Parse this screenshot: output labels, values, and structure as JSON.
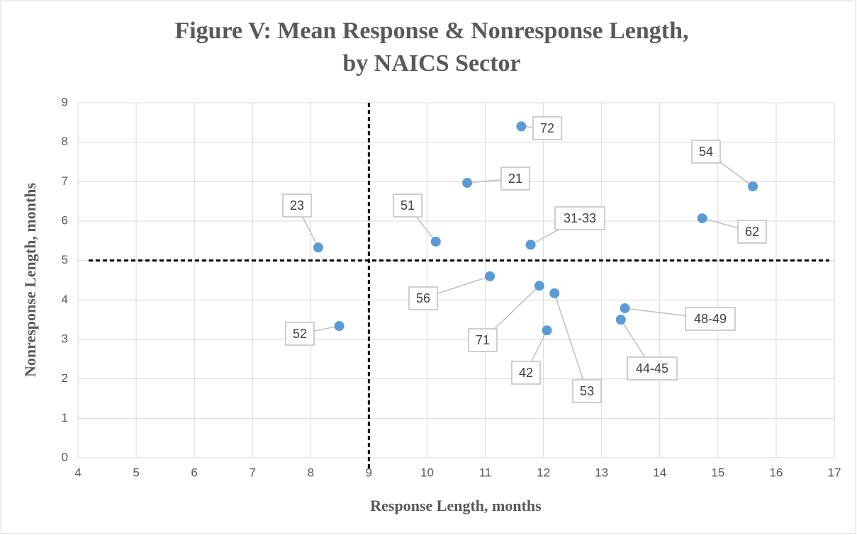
{
  "chart_data": {
    "type": "scatter",
    "title": [
      "Figure V:  Mean Response & Nonresponse Length,",
      "by NAICS Sector"
    ],
    "x_label": "Response Length, months",
    "y_label": "Nonresponse Length, months",
    "labels": [
      "72",
      "54",
      "21",
      "62",
      "23",
      "51",
      "31-33",
      "56",
      "71",
      "53",
      "48-49",
      "44-45",
      "42",
      "52"
    ],
    "x": [
      11.62,
      15.6,
      10.69,
      14.73,
      8.13,
      10.15,
      11.78,
      11.08,
      11.93,
      12.19,
      13.4,
      13.33,
      12.06,
      8.49
    ],
    "values": [
      8.4,
      6.88,
      6.97,
      6.07,
      5.33,
      5.48,
      5.4,
      4.6,
      4.36,
      4.17,
      3.79,
      3.5,
      3.23,
      3.34
    ],
    "color": "#5b9bd5",
    "xlim": [
      4,
      17
    ],
    "xticks": [
      4,
      5,
      6,
      7,
      8,
      9,
      10,
      11,
      12,
      13,
      14,
      15,
      16,
      17
    ],
    "ylim": [
      0,
      9
    ],
    "yticks": [
      0,
      1,
      2,
      3,
      4,
      5,
      6,
      7,
      8,
      9
    ],
    "grid": true,
    "reference_lines": {
      "x": 9,
      "y": 5
    }
  }
}
